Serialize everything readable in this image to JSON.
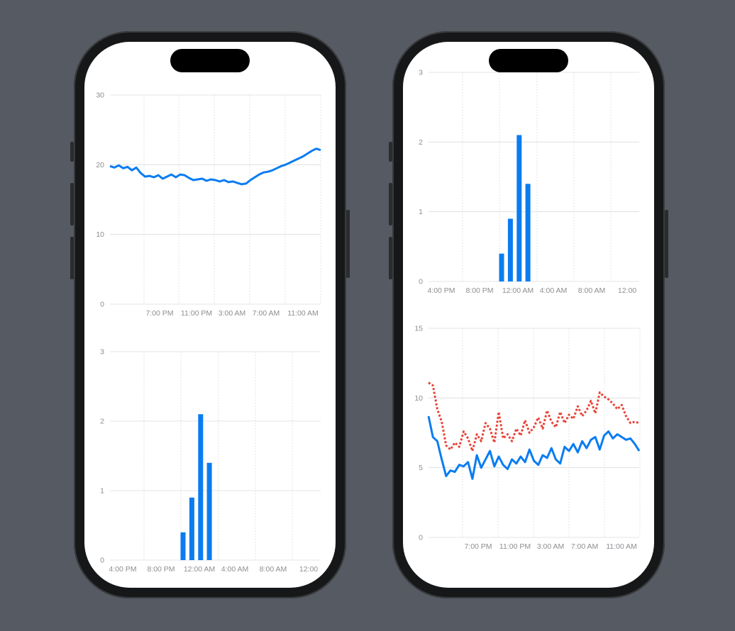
{
  "chart_data": [
    {
      "type": "line",
      "phone": "left",
      "position": "top",
      "ylim": [
        0,
        30
      ],
      "yticks": [
        0,
        10,
        20,
        30
      ],
      "xtick_labels": [
        "7:00 PM",
        "11:00 PM",
        "3:00 AM",
        "7:00 AM",
        "11:00 AM"
      ],
      "series": [
        {
          "color": "#0a7cf2",
          "x": [
            0,
            0.5,
            1,
            1.5,
            2,
            2.5,
            3,
            3.5,
            4,
            4.5,
            5,
            5.5,
            6,
            6.5,
            7,
            7.5,
            8,
            8.5,
            9,
            9.5,
            10,
            10.5,
            11,
            11.5,
            12,
            12.5,
            13,
            13.5,
            14,
            14.5,
            15,
            15.5,
            16,
            16.5,
            17,
            17.5,
            18,
            18.5,
            19,
            19.5,
            20,
            20.5,
            21,
            21.5,
            22,
            22.5,
            23,
            23.5,
            24
          ],
          "values": [
            19.8,
            19.6,
            19.9,
            19.5,
            19.7,
            19.2,
            19.6,
            18.8,
            18.3,
            18.4,
            18.2,
            18.5,
            18.0,
            18.3,
            18.6,
            18.2,
            18.6,
            18.5,
            18.1,
            17.8,
            17.9,
            18.0,
            17.7,
            17.9,
            17.8,
            17.6,
            17.8,
            17.5,
            17.6,
            17.4,
            17.2,
            17.3,
            17.8,
            18.2,
            18.6,
            18.9,
            19.0,
            19.2,
            19.5,
            19.8,
            20.0,
            20.3,
            20.6,
            20.9,
            21.2,
            21.6,
            22.0,
            22.3,
            22.1
          ]
        }
      ]
    },
    {
      "type": "bar",
      "phone": "left",
      "position": "bottom",
      "ylim": [
        0,
        3
      ],
      "yticks": [
        0,
        1,
        2,
        3
      ],
      "xtick_labels": [
        "4:00 PM",
        "8:00 PM",
        "12:00 AM",
        "4:00 AM",
        "8:00 AM",
        "12:00"
      ],
      "color": "#0a7cf2",
      "bars": [
        {
          "hour": 8,
          "value": 0.4
        },
        {
          "hour": 9,
          "value": 0.9
        },
        {
          "hour": 10,
          "value": 2.1
        },
        {
          "hour": 11,
          "value": 1.4
        }
      ]
    },
    {
      "type": "bar",
      "phone": "right",
      "position": "top",
      "ylim": [
        0,
        3
      ],
      "yticks": [
        0,
        1,
        2,
        3
      ],
      "xtick_labels": [
        "4:00 PM",
        "8:00 PM",
        "12:00 AM",
        "4:00 AM",
        "8:00 AM",
        "12:00"
      ],
      "color": "#0a7cf2",
      "bars": [
        {
          "hour": 8,
          "value": 0.4
        },
        {
          "hour": 9,
          "value": 0.9
        },
        {
          "hour": 10,
          "value": 2.1
        },
        {
          "hour": 11,
          "value": 1.4
        }
      ]
    },
    {
      "type": "line",
      "phone": "right",
      "position": "bottom",
      "ylim": [
        0,
        15
      ],
      "yticks": [
        0,
        5,
        10,
        15
      ],
      "xtick_labels": [
        "7:00 PM",
        "11:00 PM",
        "3:00 AM",
        "7:00 AM",
        "11:00 AM"
      ],
      "series": [
        {
          "color": "#0a7cf2",
          "style": "solid",
          "x": [
            0,
            0.5,
            1,
            1.5,
            2,
            2.5,
            3,
            3.5,
            4,
            4.5,
            5,
            5.5,
            6,
            6.5,
            7,
            7.5,
            8,
            8.5,
            9,
            9.5,
            10,
            10.5,
            11,
            11.5,
            12,
            12.5,
            13,
            13.5,
            14,
            14.5,
            15,
            15.5,
            16,
            16.5,
            17,
            17.5,
            18,
            18.5,
            19,
            19.5,
            20,
            20.5,
            21,
            21.5,
            22,
            22.5,
            23,
            23.5,
            24
          ],
          "values": [
            8.7,
            7.2,
            6.9,
            5.6,
            4.4,
            4.8,
            4.7,
            5.2,
            5.1,
            5.4,
            4.2,
            5.9,
            5.0,
            5.6,
            6.2,
            5.1,
            5.8,
            5.2,
            4.9,
            5.6,
            5.3,
            5.8,
            5.4,
            6.3,
            5.5,
            5.2,
            5.9,
            5.7,
            6.4,
            5.6,
            5.3,
            6.5,
            6.2,
            6.7,
            6.1,
            6.9,
            6.4,
            7.0,
            7.2,
            6.3,
            7.3,
            7.6,
            7.1,
            7.4,
            7.2,
            7.0,
            7.1,
            6.7,
            6.2
          ]
        },
        {
          "color": "#e8453a",
          "style": "dotted",
          "x": [
            0,
            0.5,
            1,
            1.5,
            2,
            2.5,
            3,
            3.5,
            4,
            4.5,
            5,
            5.5,
            6,
            6.5,
            7,
            7.5,
            8,
            8.5,
            9,
            9.5,
            10,
            10.5,
            11,
            11.5,
            12,
            12.5,
            13,
            13.5,
            14,
            14.5,
            15,
            15.5,
            16,
            16.5,
            17,
            17.5,
            18,
            18.5,
            19,
            19.5,
            20,
            20.5,
            21,
            21.5,
            22,
            22.5,
            23,
            23.5,
            24
          ],
          "values": [
            11.1,
            10.9,
            9.2,
            8.3,
            6.6,
            6.3,
            6.8,
            6.5,
            7.6,
            7.1,
            6.2,
            7.4,
            6.9,
            8.2,
            7.8,
            6.8,
            9.0,
            7.1,
            7.4,
            6.9,
            7.8,
            7.3,
            8.4,
            7.5,
            7.9,
            8.6,
            7.8,
            9.1,
            8.3,
            7.9,
            9.0,
            8.2,
            8.8,
            8.5,
            9.4,
            8.7,
            9.1,
            9.8,
            8.9,
            10.4,
            10.1,
            9.9,
            9.6,
            9.2,
            9.5,
            8.7,
            8.2,
            8.3,
            8.2
          ]
        }
      ]
    }
  ]
}
